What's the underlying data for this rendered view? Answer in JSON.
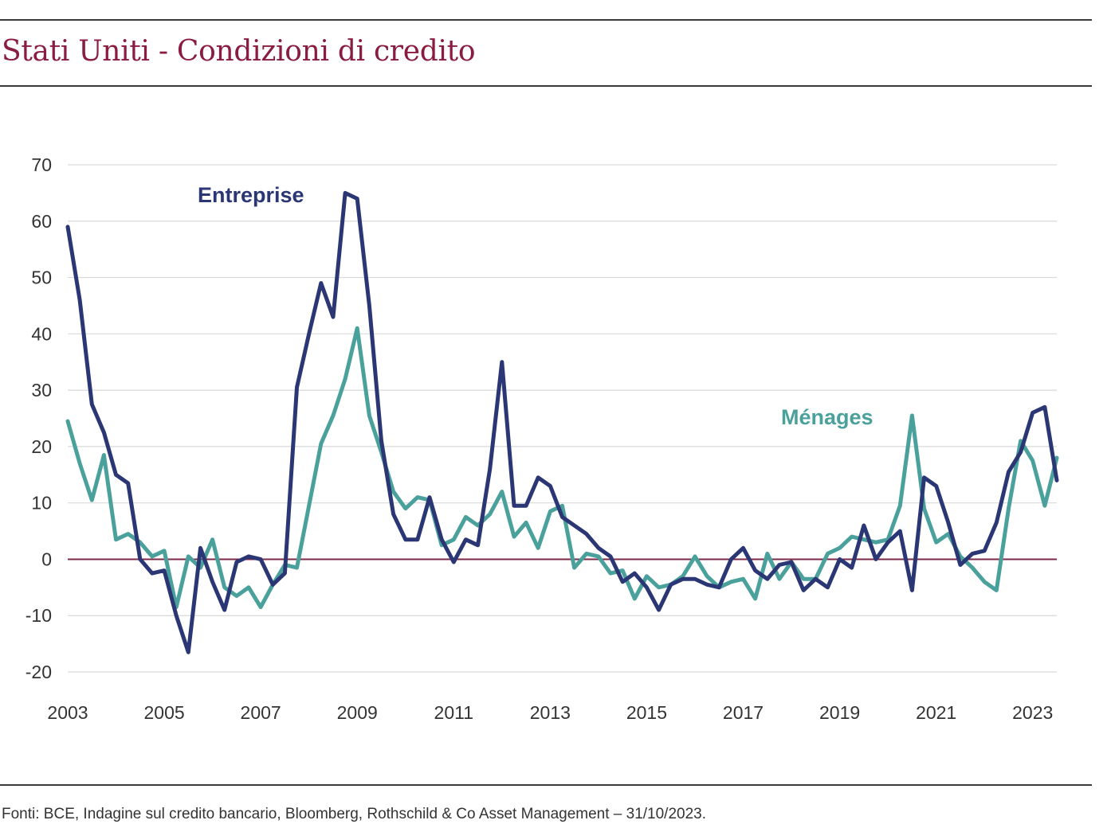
{
  "title": "Stati Uniti - Condizioni di credito",
  "source": "Fonti: BCE, Indagine sul credito bancario, Bloomberg, Rothschild & Co Asset Management – 31/10/2023.",
  "colors": {
    "title": "#8a1c3f",
    "entreprise": "#2b3674",
    "menages": "#4aa19c",
    "zero_line": "#7a2a48",
    "grid": "#d9d9d9"
  },
  "chart_data": {
    "type": "line",
    "x_start": 2003.0,
    "x_step": 0.25,
    "xlim": [
      2003,
      2023.5
    ],
    "ylim": [
      -20,
      70
    ],
    "yticks": [
      70,
      60,
      50,
      40,
      30,
      20,
      10,
      0,
      -10,
      -20
    ],
    "xticks": [
      2003,
      2005,
      2007,
      2009,
      2011,
      2013,
      2015,
      2017,
      2019,
      2021,
      2023
    ],
    "grid": true,
    "series": [
      {
        "name": "Entreprise",
        "values": [
          59,
          46,
          27.5,
          22.5,
          15,
          13.5,
          0,
          -2.5,
          -2,
          -10,
          -16.5,
          2,
          -4,
          -9,
          -0.5,
          0.5,
          0,
          -4.5,
          -2.5,
          30.5,
          40,
          49,
          43,
          65,
          64,
          45,
          21,
          8,
          3.5,
          3.5,
          11,
          3.5,
          -0.5,
          3.5,
          2.5,
          16,
          35,
          9.5,
          9.5,
          14.5,
          13,
          7.5,
          6,
          4.5,
          2,
          0.5,
          -4,
          -2.5,
          -5,
          -9,
          -4.5,
          -3.5,
          -3.5,
          -4.5,
          -5,
          0,
          2,
          -2,
          -3.5,
          -1,
          -0.5,
          -5.5,
          -3.5,
          -5,
          0,
          -1.5,
          6,
          0,
          3,
          5,
          -5.5,
          14.5,
          13,
          6.5,
          -1,
          1,
          1.5,
          6.5,
          15.5,
          19,
          26,
          27,
          14
        ]
      },
      {
        "name": "Ménages",
        "values": [
          24.5,
          17,
          10.5,
          18.5,
          3.5,
          4.5,
          3,
          0.5,
          1.5,
          -8.5,
          0.5,
          -1.5,
          3.5,
          -5,
          -6.5,
          -5,
          -8.5,
          -4.5,
          -1,
          -1.5,
          9.5,
          20.5,
          25.5,
          32,
          41,
          25.5,
          19,
          12,
          9,
          11,
          10.5,
          2.5,
          3.5,
          7.5,
          6,
          8,
          12,
          4,
          6.5,
          2,
          8.5,
          9.5,
          -1.5,
          1,
          0.5,
          -2.5,
          -2,
          -7,
          -3,
          -5,
          -4.5,
          -3,
          0.5,
          -3,
          -5,
          -4,
          -3.5,
          -7,
          1,
          -3.5,
          -0.5,
          -3.5,
          -3.5,
          1,
          2,
          4,
          3.5,
          3,
          3.5,
          9.5,
          25.5,
          9,
          3,
          4.5,
          0.5,
          -1.5,
          -4,
          -5.5,
          9,
          21,
          17.5,
          9.5,
          18
        ]
      }
    ]
  }
}
